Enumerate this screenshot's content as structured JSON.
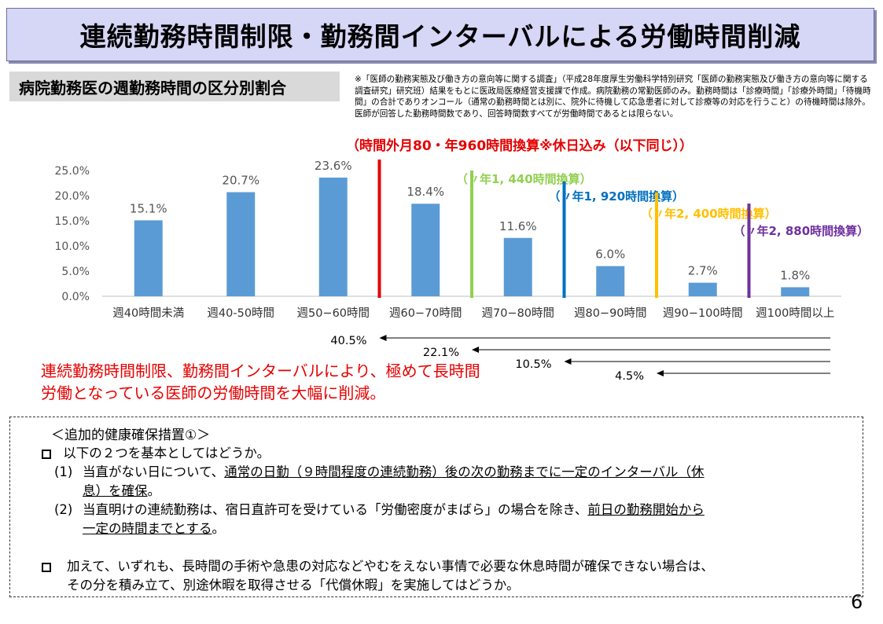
{
  "title": "連続勤務時間制限・勤務間インターバルによる労働時間削減",
  "subtitle": "病院勤務医の週勤務時間の区分別割合",
  "note": "※「医師の勤務実態及び働き方の意向等に関する調査」（平成28年度厚生労働科学特別研究「医師の勤務実態及び働き方の意向等に関する調査研究」研究班）結果をもとに医政局医療経営支援課で作成。病院勤務の常勤医師のみ。勤務時間は「診療時間」「診療外時間」「待機時間」の合計でありオンコール（通常の勤務時間とは別に、院外に待機して応急患者に対して診療等の対応を行うこと）の待機時間は除外。医師が回答した勤務時間数であり、回答時間数すべてが労働時間であるとは限らない。",
  "red_header": "（時間外月80・年960時間換算※休日込み（以下同じ））",
  "colors": {
    "bar": "#5b9bd5",
    "red": "#e60000",
    "green": "#92d050",
    "blue": "#0070c0",
    "orange": "#ffc000",
    "purple": "#7030a0"
  },
  "chart_data": {
    "type": "bar",
    "categories": [
      "週40時間未満",
      "週40-50時間",
      "週50−60時間",
      "週60−70時間",
      "週70−80時間",
      "週80−90時間",
      "週90−100時間",
      "週100時間以上"
    ],
    "values": [
      15.1,
      20.7,
      23.6,
      18.4,
      11.6,
      6.0,
      2.7,
      1.8
    ],
    "data_labels": [
      "15.1%",
      "20.7%",
      "23.6%",
      "18.4%",
      "11.6%",
      "6.0%",
      "2.7%",
      "1.8%"
    ],
    "ylim": [
      0,
      25
    ],
    "yticks": [
      "0.0%",
      "5.0%",
      "10.0%",
      "15.0%",
      "20.0%",
      "25.0%"
    ],
    "grid": false,
    "thresholds": [
      {
        "between": [
          2,
          3
        ],
        "color": "red",
        "label": ""
      },
      {
        "between": [
          3,
          4
        ],
        "color": "green",
        "label": "（〃年1, 440時間換算）"
      },
      {
        "between": [
          4,
          5
        ],
        "color": "blue",
        "label": "（〃年1, 920時間換算）"
      },
      {
        "between": [
          5,
          6
        ],
        "color": "orange",
        "label": "（〃年2, 400時間換算）"
      },
      {
        "between": [
          6,
          7
        ],
        "color": "purple",
        "label": "（〃年2, 880時間換算）"
      }
    ],
    "cumulative": [
      {
        "from": 3,
        "label": "40.5%"
      },
      {
        "from": 4,
        "label": "22.1%"
      },
      {
        "from": 5,
        "label": "10.5%"
      },
      {
        "from": 6,
        "label": "4.5%"
      }
    ]
  },
  "conclusion": {
    "line1": "連続勤務時間制限、勤務間インターバルにより、極めて長時間",
    "line2": "労働となっている医師の労働時間を大幅に削減。"
  },
  "measures": {
    "heading": "＜追加的健康確保措置①＞",
    "bullet1": "以下の２つを基本としてはどうか。",
    "item1_num": "(1)",
    "item1_a": "当直がない日について、",
    "item1_b": "通常の日勤（９時間程度の連続勤務）後の次の勤務までに一定のインターバル（休",
    "item1_c": "息）を確保",
    "item1_d": "。",
    "item2_num": "(2)",
    "item2_a": "当直明けの連続勤務は、宿日直許可を受けている「労働密度がまばら」の場合を除き、",
    "item2_b": "前日の勤務開始から",
    "item2_c": "一定の時間までとする",
    "item2_d": "。",
    "bullet2_line1": "加えて、いずれも、長時間の手術や急患の対応などやむをえない事情で必要な休息時間が確保できない場合は、",
    "bullet2_line2": "その分を積み立て、別途休暇を取得させる「代償休暇」を実施してはどうか。"
  },
  "page_number": "6"
}
